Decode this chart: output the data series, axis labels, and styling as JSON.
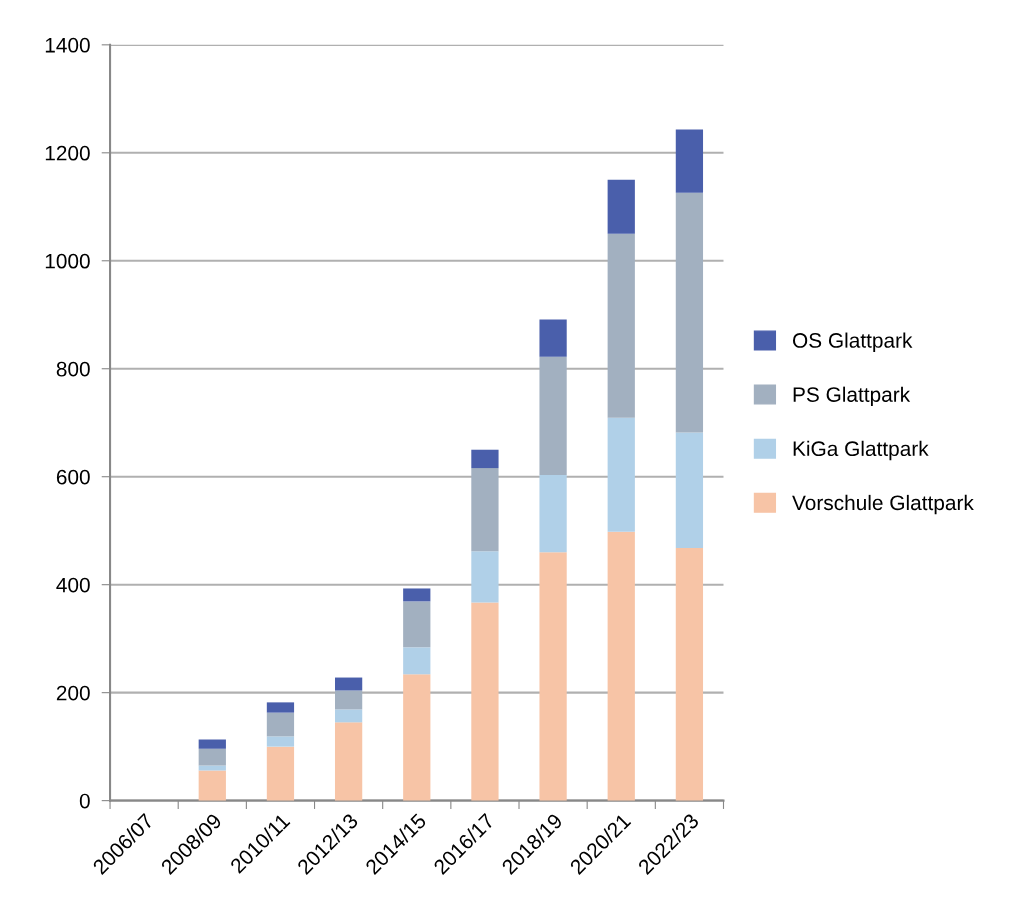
{
  "chart_data": {
    "type": "bar",
    "stacked": true,
    "categories": [
      "2006/07",
      "2008/09",
      "2010/11",
      "2012/13",
      "2014/15",
      "2016/17",
      "2018/19",
      "2020/21",
      "2022/23"
    ],
    "series": [
      {
        "name": "Vorschule Glattpark",
        "color": "#f7c4a6",
        "values": [
          null,
          56,
          100,
          145,
          234,
          367,
          460,
          498,
          468
        ]
      },
      {
        "name": "KiGa Glattpark",
        "color": "#b0d0e8",
        "values": [
          0,
          9,
          19,
          24,
          50,
          95,
          143,
          211,
          214
        ]
      },
      {
        "name": "PS Glattpark",
        "color": "#a2b0c0",
        "values": [
          0,
          31,
          44,
          35,
          85,
          154,
          219,
          341,
          444
        ]
      },
      {
        "name": "OS Glattpark",
        "color": "#4a5fab",
        "values": [
          0,
          17,
          19,
          24,
          24,
          34,
          69,
          100,
          117
        ]
      }
    ],
    "ylim": [
      0,
      1400
    ],
    "yticks": [
      0,
      200,
      400,
      600,
      800,
      1000,
      1200,
      1400
    ],
    "grid": "y",
    "legend": "right"
  }
}
